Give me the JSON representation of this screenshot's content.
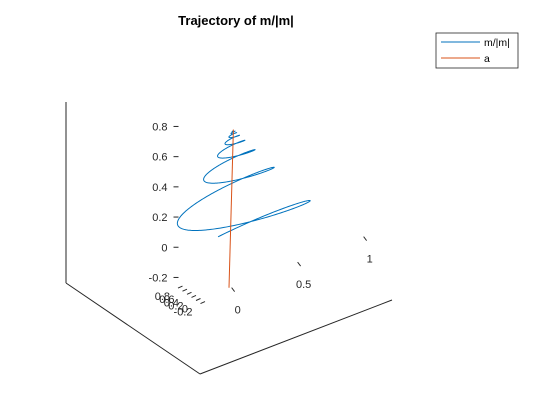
{
  "chart_data": {
    "type": "line3d",
    "title": "Trajectory of m/|m|",
    "xlabel": "",
    "ylabel": "",
    "zlabel": "",
    "xlim": [
      -0.25,
      1
    ],
    "ylim": [
      -0.25,
      0.9
    ],
    "zlim": [
      -0.25,
      0.9
    ],
    "x_ticks": [
      -0.2,
      0,
      0.2,
      0.4,
      0.6,
      0.8
    ],
    "x_tick_labels": [
      "-0.2",
      "0",
      "0.2",
      "0.4",
      "0.6",
      "0.8"
    ],
    "y_ticks": [
      0,
      0.5,
      1
    ],
    "y_tick_labels": [
      "0",
      "0.5",
      "1"
    ],
    "z_ticks": [
      -0.2,
      0,
      0.2,
      0.4,
      0.6,
      0.8
    ],
    "z_tick_labels": [
      "-0.2",
      "0",
      "0.2",
      "0.4",
      "0.6",
      "0.8"
    ],
    "grid": false,
    "legend_position": "top-right",
    "series": [
      {
        "name": "m/|m|",
        "color": "#0072bd",
        "kind": "damped-spiral",
        "center": [
          0.04,
          0.04
        ],
        "start_radius": 0.68,
        "turns": 7,
        "z_start": 0.0,
        "z_end": 0.78
      },
      {
        "name": "a",
        "color": "#d95319",
        "kind": "segment",
        "points": [
          [
            0,
            0,
            -0.25
          ],
          [
            0.04,
            0.04,
            0.78
          ]
        ]
      }
    ]
  }
}
